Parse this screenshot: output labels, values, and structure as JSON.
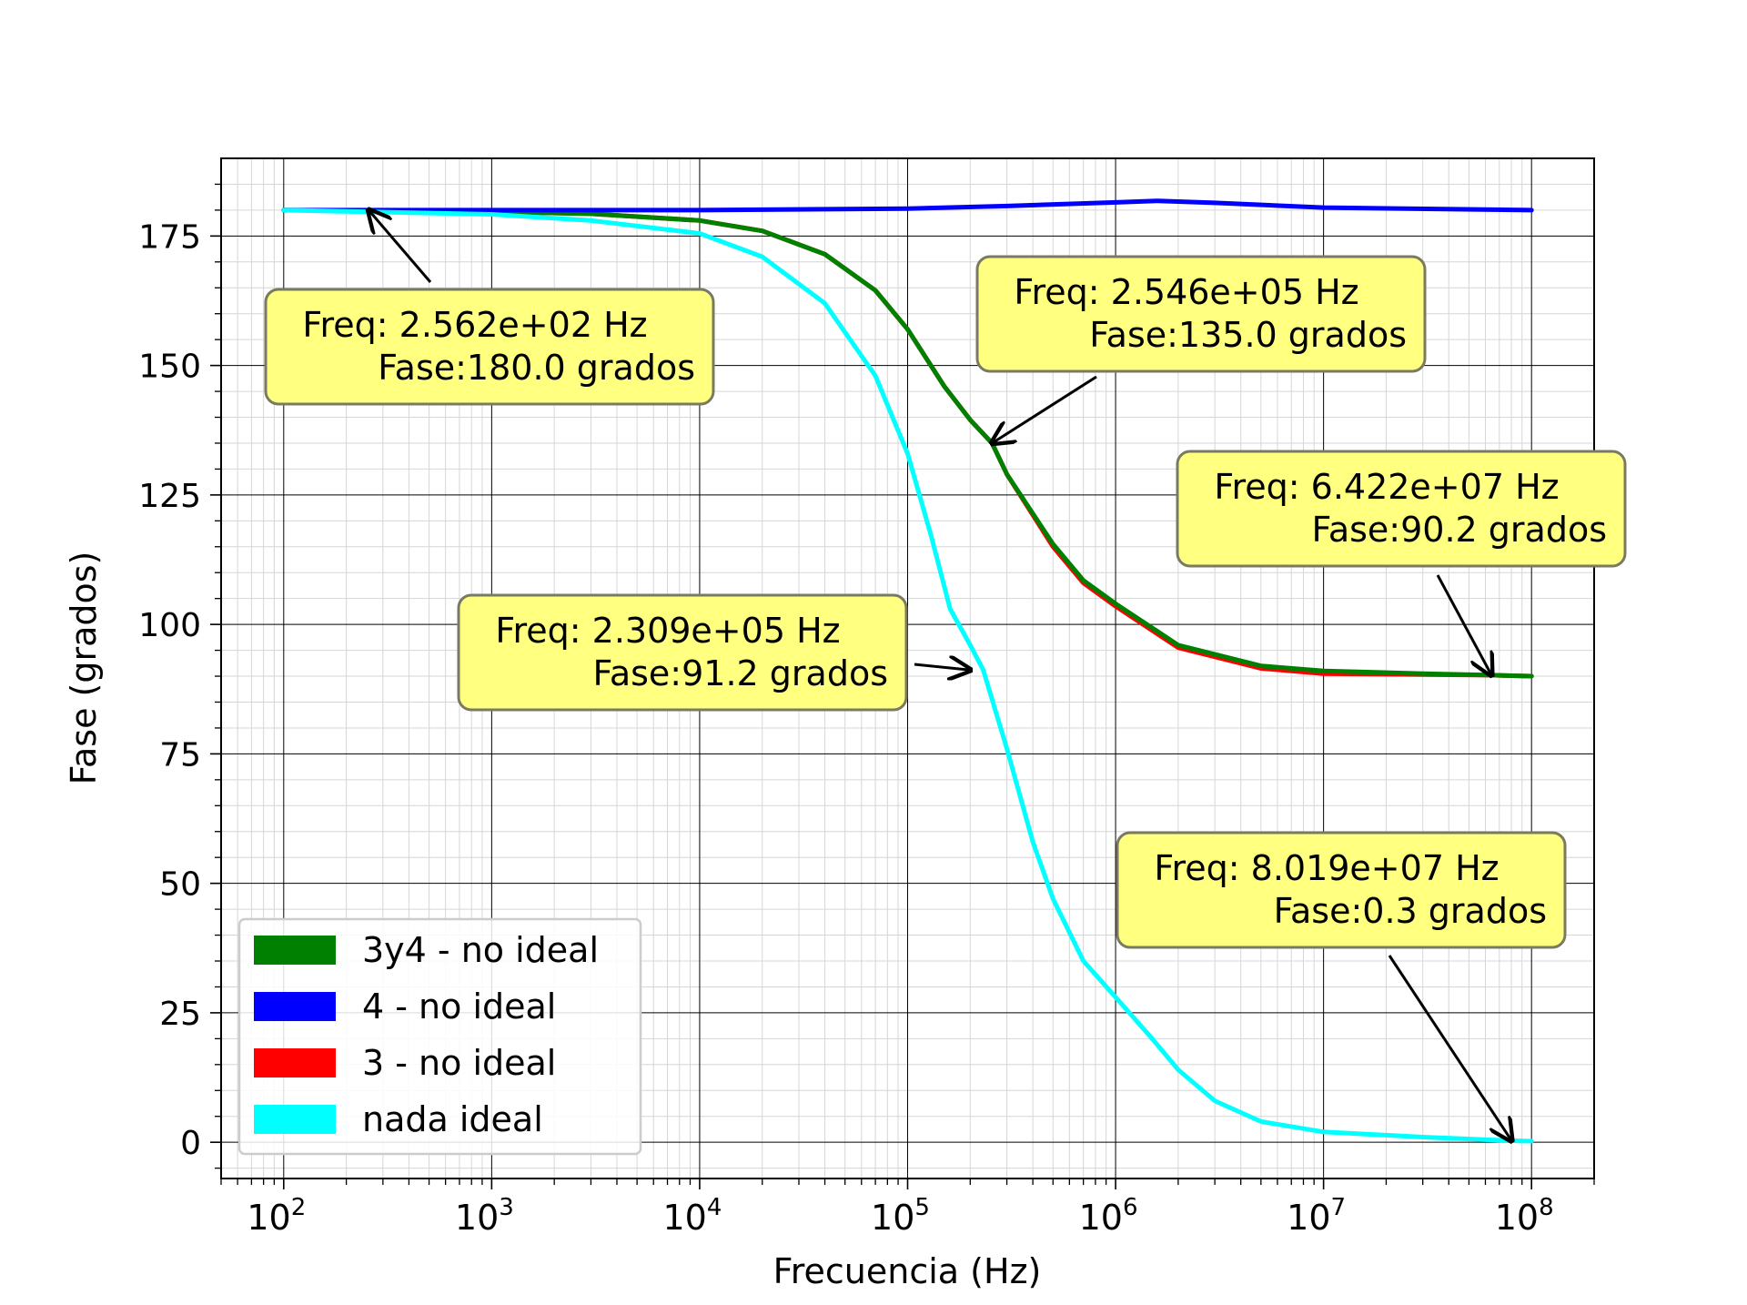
{
  "chart_data": {
    "type": "line",
    "xlabel": "Frecuencia (Hz)",
    "ylabel": "Fase (grados)",
    "x_scale": "log",
    "xlim": [
      50,
      200000000
    ],
    "ylim": [
      -7,
      190
    ],
    "x_ticks": [
      {
        "value": 100,
        "base": "10",
        "exp": "2"
      },
      {
        "value": 1000,
        "base": "10",
        "exp": "3"
      },
      {
        "value": 10000,
        "base": "10",
        "exp": "4"
      },
      {
        "value": 100000,
        "base": "10",
        "exp": "5"
      },
      {
        "value": 1000000,
        "base": "10",
        "exp": "6"
      },
      {
        "value": 10000000,
        "base": "10",
        "exp": "7"
      },
      {
        "value": 100000000,
        "base": "10",
        "exp": "8"
      }
    ],
    "y_ticks": [
      0,
      25,
      50,
      75,
      100,
      125,
      150,
      175
    ],
    "grid": true,
    "legend_position": "bottom-left",
    "series": [
      {
        "name": "3y4 - no ideal",
        "color": "#008000",
        "x": [
          100,
          1000,
          3000,
          10000,
          20000,
          40000,
          70000,
          100000,
          150000,
          200000,
          254600,
          300000,
          500000,
          700000,
          1000000,
          2000000,
          5000000,
          10000000,
          30000000,
          64220000,
          100000000
        ],
        "y": [
          180,
          179.7,
          179.3,
          178,
          176,
          171.5,
          164.5,
          157,
          146,
          139.5,
          135,
          129,
          115.5,
          108.5,
          104,
          96,
          92,
          91,
          90.5,
          90.2,
          90
        ]
      },
      {
        "name": "4 - no ideal",
        "color": "#0000ff",
        "x": [
          100,
          10000,
          100000,
          300000,
          1000000,
          1600000,
          3000000,
          10000000,
          100000000
        ],
        "y": [
          180,
          180,
          180.3,
          180.8,
          181.5,
          181.8,
          181.4,
          180.5,
          180
        ]
      },
      {
        "name": "3 - no ideal",
        "color": "#ff0000",
        "x": [
          100,
          1000,
          3000,
          10000,
          20000,
          40000,
          70000,
          100000,
          150000,
          200000,
          254600,
          300000,
          500000,
          700000,
          1000000,
          2000000,
          5000000,
          10000000,
          30000000,
          64220000,
          100000000
        ],
        "y": [
          180,
          179.7,
          179.3,
          178,
          176,
          171.5,
          164.5,
          157,
          146,
          139.5,
          135,
          129,
          115,
          108,
          103.5,
          95.5,
          91.5,
          90.5,
          90.3,
          90.2,
          90
        ]
      },
      {
        "name": "nada ideal",
        "color": "#00ffff",
        "x": [
          100,
          1000,
          3000,
          10000,
          20000,
          40000,
          70000,
          100000,
          130000,
          160000,
          200000,
          230900,
          300000,
          400000,
          500000,
          700000,
          1000000,
          1500000,
          2000000,
          3000000,
          5000000,
          10000000,
          30000000,
          80190000,
          100000000
        ],
        "y": [
          180,
          179.2,
          178,
          175.5,
          171,
          162,
          148,
          133,
          117,
          103,
          96,
          91.2,
          76,
          58,
          47,
          35,
          28,
          20,
          14,
          8,
          4,
          2,
          1,
          0.3,
          0.2
        ]
      }
    ],
    "annotations": [
      {
        "freq_line": "Freq: 2.562e+02  Hz",
        "phase_line": "Fase:180.0 grados",
        "x": 256.2,
        "y": 180.0,
        "tip_x": 256.2,
        "tip_y": 180.0,
        "arrow": true
      },
      {
        "freq_line": "Freq: 2.546e+05  Hz",
        "phase_line": "Fase:135.0 grados",
        "x": 254600,
        "y": 135.0,
        "tip_x": 254600,
        "tip_y": 135.0,
        "arrow": true
      },
      {
        "freq_line": "Freq: 6.422e+07  Hz",
        "phase_line": "Fase:90.2 grados",
        "x": 64220000,
        "y": 90.2,
        "tip_x": 64220000,
        "tip_y": 90.2,
        "arrow": true
      },
      {
        "freq_line": "Freq: 2.309e+05  Hz",
        "phase_line": "Fase:91.2 grados",
        "x": 230900,
        "y": 91.2,
        "tip_x": 200000,
        "tip_y": 91.2,
        "arrow": true
      },
      {
        "freq_line": "Freq: 8.019e+07  Hz",
        "phase_line": "Fase:0.3 grados",
        "x": 80190000,
        "y": 0.3,
        "tip_x": 80190000,
        "tip_y": 0.3,
        "arrow": true
      }
    ],
    "annotation_box_color": "#ffff80"
  }
}
